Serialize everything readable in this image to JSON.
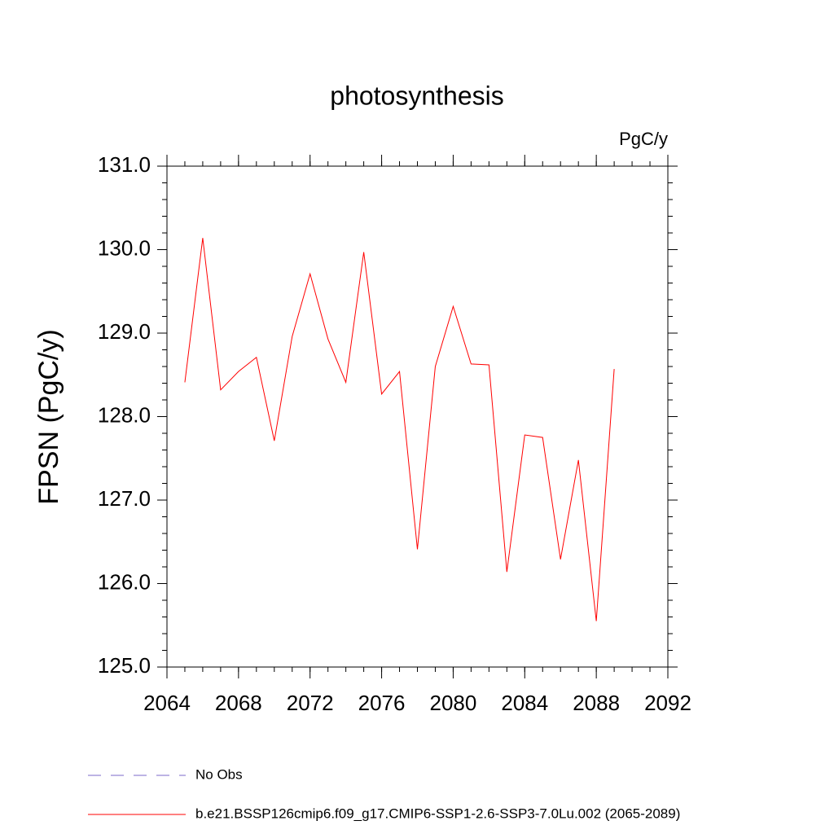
{
  "chart_data": {
    "type": "line",
    "title": "photosynthesis",
    "units_label": "PgC/y",
    "y_label": "FPSN  (PgC/y)",
    "x": [
      2065,
      2066,
      2067,
      2068,
      2069,
      2070,
      2071,
      2072,
      2073,
      2074,
      2075,
      2076,
      2077,
      2078,
      2079,
      2080,
      2081,
      2082,
      2083,
      2084,
      2085,
      2086,
      2087,
      2088,
      2089
    ],
    "series": [
      {
        "name": "No Obs",
        "color": "#7b68c8",
        "line_style": "dashed",
        "values": [
          null,
          null,
          null,
          null,
          null,
          null,
          null,
          null,
          null,
          null,
          null,
          null,
          null,
          null,
          null,
          null,
          null,
          null,
          null,
          null,
          null,
          null,
          null,
          null,
          null
        ]
      },
      {
        "name": "b.e21.BSSP126cmip6.f09_g17.CMIP6-SSP1-2.6-SSP3-7.0Lu.002 (2065-2089)",
        "color": "#ff0000",
        "line_style": "solid",
        "values": [
          128.41,
          130.14,
          128.32,
          128.54,
          128.71,
          127.71,
          128.96,
          129.71,
          128.93,
          128.41,
          129.97,
          128.27,
          128.54,
          126.41,
          128.6,
          129.32,
          128.63,
          128.62,
          126.14,
          127.78,
          127.75,
          126.29,
          127.48,
          125.55,
          128.57
        ]
      }
    ],
    "xlim": [
      2064,
      2092
    ],
    "xticks": [
      2064,
      2068,
      2072,
      2076,
      2080,
      2084,
      2088,
      2092
    ],
    "ylim": [
      125,
      131
    ],
    "yticks": [
      {
        "value": 125,
        "label": "125.0"
      },
      {
        "value": 126,
        "label": "126.0"
      },
      {
        "value": 127,
        "label": "127.0"
      },
      {
        "value": 128,
        "label": "128.0"
      },
      {
        "value": 129,
        "label": "129.0"
      },
      {
        "value": 130,
        "label": "130.0"
      },
      {
        "value": 131,
        "label": "131.0"
      }
    ],
    "grid": false
  }
}
